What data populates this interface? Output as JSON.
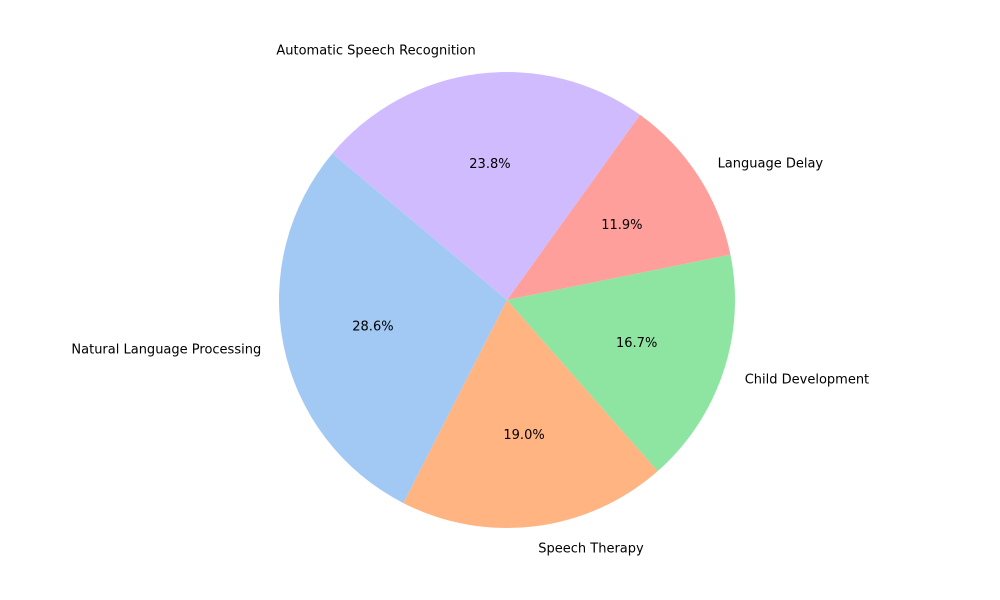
{
  "chart_data": {
    "type": "pie",
    "categories": [
      "Natural Language Processing",
      "Speech Therapy",
      "Child Development",
      "Language Delay",
      "Automatic Speech Recognition"
    ],
    "values": [
      28.6,
      19.0,
      16.7,
      11.9,
      23.8
    ],
    "percent_labels": [
      "28.6%",
      "19.0%",
      "16.7%",
      "11.9%",
      "23.8%"
    ],
    "colors": [
      "#a1c9f4",
      "#ffb482",
      "#8de5a1",
      "#ff9f9b",
      "#d0bbff"
    ],
    "start_angle_deg": 140,
    "direction": "counterclockwise"
  }
}
